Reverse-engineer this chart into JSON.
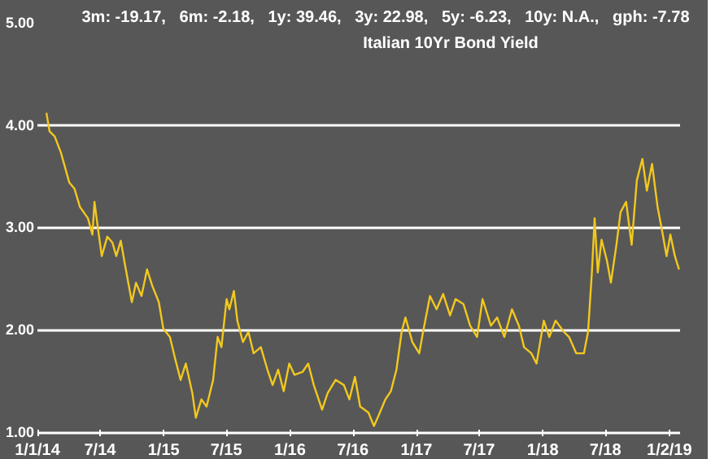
{
  "chart_data": {
    "type": "line",
    "title": "Italian 10Yr Bond Yield",
    "subtitle": "3m: -19.17,   6m: -2.18,   1y: 39.46,   3y: 22.98,   5y: -6.23,   10y: N.A.,   gph: -7.78",
    "x": [
      "2014-01-27",
      "2014-02-05",
      "2014-02-20",
      "2014-03-10",
      "2014-04-03",
      "2014-04-18",
      "2014-05-04",
      "2014-05-27",
      "2014-06-09",
      "2014-06-15",
      "2014-06-25",
      "2014-07-06",
      "2014-07-22",
      "2014-08-06",
      "2014-08-17",
      "2014-08-30",
      "2014-09-12",
      "2014-10-01",
      "2014-10-13",
      "2014-10-29",
      "2014-11-14",
      "2014-11-29",
      "2014-12-18",
      "2014-12-31",
      "2015-01-19",
      "2015-02-03",
      "2015-02-19",
      "2015-03-06",
      "2015-03-25",
      "2015-04-04",
      "2015-04-20",
      "2015-05-05",
      "2015-05-24",
      "2015-06-06",
      "2015-06-17",
      "2015-07-02",
      "2015-07-10",
      "2015-07-23",
      "2015-08-02",
      "2015-08-18",
      "2015-09-03",
      "2015-09-18",
      "2015-10-09",
      "2015-10-28",
      "2015-11-12",
      "2015-11-28",
      "2015-12-14",
      "2015-12-30",
      "2016-01-14",
      "2016-02-07",
      "2016-02-23",
      "2016-03-10",
      "2016-04-03",
      "2016-04-19",
      "2016-05-12",
      "2016-06-05",
      "2016-06-21",
      "2016-07-07",
      "2016-07-22",
      "2016-08-15",
      "2016-08-31",
      "2016-09-17",
      "2016-10-03",
      "2016-10-19",
      "2016-11-04",
      "2016-11-19",
      "2016-11-30",
      "2016-12-20",
      "2017-01-09",
      "2017-01-20",
      "2017-02-09",
      "2017-02-28",
      "2017-03-19",
      "2017-04-08",
      "2017-04-24",
      "2017-05-17",
      "2017-06-05",
      "2017-06-25",
      "2017-07-11",
      "2017-08-04",
      "2017-08-22",
      "2017-09-12",
      "2017-10-04",
      "2017-10-24",
      "2017-11-08",
      "2017-11-29",
      "2017-12-14",
      "2018-01-04",
      "2018-01-20",
      "2018-02-07",
      "2018-03-03",
      "2018-03-18",
      "2018-04-08",
      "2018-04-30",
      "2018-05-12",
      "2018-05-23",
      "2018-05-31",
      "2018-06-09",
      "2018-06-20",
      "2018-07-06",
      "2018-07-17",
      "2018-08-02",
      "2018-08-14",
      "2018-08-30",
      "2018-09-15",
      "2018-09-30",
      "2018-10-16",
      "2018-10-29",
      "2018-11-13",
      "2018-11-29",
      "2018-12-14",
      "2018-12-25",
      "2019-01-05",
      "2019-01-18",
      "2019-01-30"
    ],
    "series": [
      {
        "color": "#f2c81e",
        "values": [
          4.12,
          3.94,
          3.89,
          3.73,
          3.44,
          3.38,
          3.2,
          3.09,
          2.93,
          3.25,
          2.99,
          2.72,
          2.91,
          2.85,
          2.72,
          2.87,
          2.62,
          2.27,
          2.46,
          2.33,
          2.59,
          2.43,
          2.27,
          2.01,
          1.93,
          1.72,
          1.51,
          1.67,
          1.38,
          1.14,
          1.32,
          1.25,
          1.51,
          1.93,
          1.83,
          2.3,
          2.2,
          2.38,
          2.09,
          1.88,
          1.98,
          1.77,
          1.83,
          1.61,
          1.46,
          1.61,
          1.4,
          1.67,
          1.56,
          1.59,
          1.67,
          1.46,
          1.22,
          1.38,
          1.51,
          1.46,
          1.32,
          1.54,
          1.25,
          1.19,
          1.06,
          1.19,
          1.32,
          1.4,
          1.61,
          1.98,
          2.12,
          1.88,
          1.77,
          1.98,
          2.33,
          2.2,
          2.35,
          2.14,
          2.3,
          2.25,
          2.04,
          1.93,
          2.3,
          2.04,
          2.12,
          1.93,
          2.2,
          2.04,
          1.83,
          1.77,
          1.67,
          2.09,
          1.93,
          2.09,
          1.98,
          1.93,
          1.77,
          1.77,
          1.98,
          2.56,
          3.09,
          2.56,
          2.88,
          2.67,
          2.46,
          2.83,
          3.15,
          3.25,
          2.83,
          3.46,
          3.67,
          3.36,
          3.62,
          3.2,
          2.93,
          2.72,
          2.93,
          2.72,
          2.59
        ]
      }
    ],
    "xlim": [
      "2014-01-01",
      "2019-02-02"
    ],
    "xticks": [
      {
        "value": "2014-01-01",
        "label": "1/1/14"
      },
      {
        "value": "2014-07-01",
        "label": "7/14"
      },
      {
        "value": "2015-01-01",
        "label": "1/15"
      },
      {
        "value": "2015-07-01",
        "label": "7/15"
      },
      {
        "value": "2016-01-01",
        "label": "1/16"
      },
      {
        "value": "2016-07-01",
        "label": "7/16"
      },
      {
        "value": "2017-01-01",
        "label": "1/17"
      },
      {
        "value": "2017-07-01",
        "label": "7/17"
      },
      {
        "value": "2018-01-01",
        "label": "1/18"
      },
      {
        "value": "2018-07-01",
        "label": "7/18"
      },
      {
        "value": "2019-01-02",
        "label": "1/2/19"
      }
    ],
    "ylim": [
      0.96,
      5
    ],
    "yticks": [
      {
        "value": 1,
        "label": "1.00"
      },
      {
        "value": 2,
        "label": "2.00"
      },
      {
        "value": 3,
        "label": "3.00"
      },
      {
        "value": 4,
        "label": "4.00"
      },
      {
        "value": 5,
        "label": "5.00"
      }
    ],
    "grid": "y",
    "marker": "none",
    "line_style": "solid"
  }
}
